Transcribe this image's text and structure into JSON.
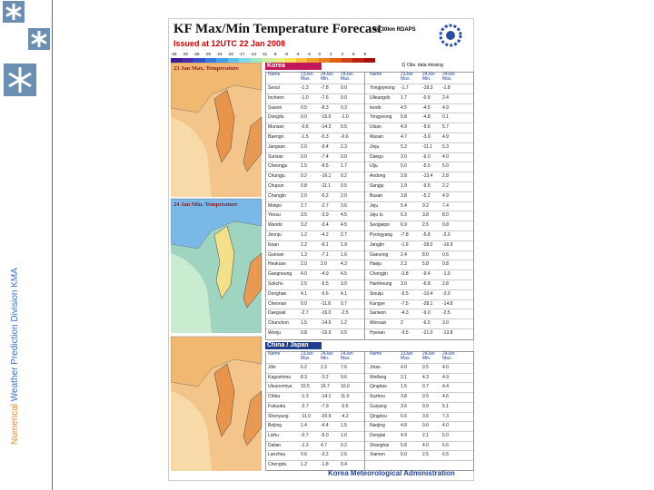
{
  "sidebar": {
    "text_a": "Numerical ",
    "text_b": "Weather Prediction Division  KMA"
  },
  "header": {
    "title": "KF Max/Min Temperature Forecast",
    "subtitle": "by 30km RDAPS",
    "issued": "Issued at 12UTC 22 Jan 2008"
  },
  "scale": [
    "-35",
    "-32",
    "-29",
    "-26",
    "-23",
    "-20",
    "-17",
    "-14",
    "-11",
    "-8",
    "-6",
    "-4",
    "-2",
    "0",
    "2",
    "4",
    "6",
    "8"
  ],
  "maps": [
    "23 Jan Max. Temperature",
    "24 Jan Min. Temperature"
  ],
  "korea": {
    "title": "Korea",
    "note": "1) Obs. data missing",
    "columns": [
      "Name",
      "23Jan Max.",
      "24Jan Min.",
      "24Jan Max.",
      "Name",
      "23Jan Max.",
      "24Jan Min.",
      "24Jan Max."
    ],
    "rows": [
      [
        "Seoul",
        "-1.3",
        "-7.8",
        "0.0",
        "Yongpyeong",
        "-1.7",
        "-18.3",
        "-1.8"
      ],
      [
        "Incheon",
        "-1.0",
        "-7.6",
        "0.0",
        "Ulleungdo",
        "1.7",
        "-0.9",
        "2.4"
      ],
      [
        "Suwon",
        "0.5",
        "-8.3",
        "0.3",
        "Ieodo",
        "4.5",
        "-4.5",
        "4.9"
      ],
      [
        "Dongdu",
        "0.0",
        "-15.0",
        "-1.0",
        "Tongyeong",
        "5.8",
        "-4.8",
        "0.1"
      ],
      [
        "Munsan",
        "-0.6",
        "-14.3",
        "0.5",
        "Ulsan",
        "4.9",
        "-5.6",
        "5.7"
      ],
      [
        "Baengn.",
        "-1.5",
        "-5.3",
        "-0.6",
        "Masan",
        "4.7",
        "-3.9",
        "4.9"
      ],
      [
        "Jangsan",
        "2.0",
        "-9.4",
        "2.3",
        "Jinju",
        "5.2",
        "-11.1",
        "5.3"
      ],
      [
        "Sunsan",
        "0.0",
        "-7.4",
        "0.0",
        "Daegu",
        "3.0",
        "-6.0",
        "4.0"
      ],
      [
        "Cheongju",
        "1.5",
        "-9.5",
        "1.7",
        "Ulju",
        "5.0",
        "-5.5",
        "5.0"
      ],
      [
        "Chungju",
        "0.2",
        "-16.1",
        "0.2",
        "Andong",
        "2.8",
        "-13.4",
        "2.8"
      ],
      [
        "Chupun",
        "0.8",
        "-11.1",
        "0.5",
        "Sangju",
        "1.9",
        "-9.5",
        "2.2"
      ],
      [
        "Changjin",
        "2.0",
        "-5.2",
        "2.0",
        "Busan",
        "3.8",
        "-5.2",
        "4.9"
      ],
      [
        "Mokpo",
        "2.7",
        "-2.7",
        "3.6",
        "Jeju",
        "5.4",
        "9.2",
        "7.4"
      ],
      [
        "Yeosu",
        "3.5",
        "-3.9",
        "4.5",
        "Jeju Is.",
        "6.3",
        "3.8",
        "8.0"
      ],
      [
        "Wando",
        "3.2",
        "-3.4",
        "4.5",
        "Seogwipo",
        "6.9",
        "2.5",
        "9.8"
      ],
      [
        "Jeonju",
        "1.2",
        "-4.2",
        "2.7",
        "Pyongyang",
        "-7.8",
        "-5.8",
        "-2.0"
      ],
      [
        "Iksan",
        "2.2",
        "-9.1",
        "1.9",
        "Jangjin",
        "-1.6",
        "-28.0",
        "-16.9"
      ],
      [
        "Gunsan",
        "1.3",
        "-7.1",
        "1.6",
        "Gaesong",
        "2.4",
        "8.0",
        "0.6"
      ],
      [
        "Heuksan",
        "2.0",
        "2.0",
        "4.3",
        "Haeju",
        "2.3",
        "5.8",
        "0.8"
      ],
      [
        "Gangneung",
        "4.0",
        "-4.9",
        "4.5",
        "Chongjin",
        "-3.8",
        "-9.4",
        "-1.0"
      ],
      [
        "Sokcho",
        "2.5",
        "-5.5",
        "3.0",
        "Hamheung",
        "3.0",
        "-6.8",
        "2.8"
      ],
      [
        "Donghae",
        "4.1",
        "-5.6",
        "4.1",
        "Sinuiju",
        "-5.5",
        "-10.4",
        "-3.0"
      ],
      [
        "Cheonan",
        "0.0",
        "-11.8",
        "0.7",
        "Kangye",
        "-7.5",
        "-28.1",
        "-14.8"
      ],
      [
        "Daegwal",
        "-2.7",
        "-16.0",
        "-2.5",
        "Sariwon",
        "-4.3",
        "-9.0",
        "-2.5"
      ],
      [
        "Chunchon",
        "1.5",
        "-14.5",
        "1.2",
        "Wonsan",
        "2",
        "-6.5",
        "3.0"
      ],
      [
        "Wonju",
        "0.8",
        "-15.9",
        "0.5",
        "Hyesan",
        "-3.5",
        "-21.0",
        "-13.8"
      ]
    ]
  },
  "china_japan": {
    "title": "China / Japan",
    "columns": [
      "Name",
      "23Jan Max.",
      "24Jan Min.",
      "24Jan Max.",
      "Name",
      "23Jan Max.",
      "24Jan Min.",
      "24Jan Max."
    ],
    "rows": [
      [
        "Jilin",
        "6.2",
        "2.3",
        "7.6",
        "Jinan",
        "4.0",
        "0.5",
        "4.0"
      ],
      [
        "Kagoshima",
        "8.3",
        "-3.2",
        "9.6",
        "Weifang",
        "2.1",
        "4.3",
        "4.9"
      ],
      [
        "Utsunomiya",
        "10.5",
        "16.7",
        "10.0",
        "Qingdao",
        "1.5",
        "0.7",
        "4.4"
      ],
      [
        "Chiba",
        "-1.3",
        "-14.1",
        "11.0",
        "Suzhou",
        "3.8",
        "0.5",
        "4.6"
      ],
      [
        "Fukuoka",
        "-2.7",
        "-7.9",
        "-0.6",
        "Guiyang",
        "3.6",
        "0.9",
        "5.1"
      ],
      [
        "Shenyang",
        "-11.0",
        "-20.9",
        "-4.2",
        "Qingdou",
        "6.6",
        "3.6",
        "7.3"
      ],
      [
        "Beijing",
        "1.4",
        "-4.4",
        "1.5",
        "Nanjing",
        "4.8",
        "0.6",
        "4.0"
      ],
      [
        "Lishu",
        "-0.7",
        "-5.0",
        "1.0",
        "Dongtai",
        "4.9",
        "2.1",
        "5.0"
      ],
      [
        "Dalian",
        "-1.3",
        "4.7",
        "0.2",
        "Shanghai",
        "5.8",
        "4.0",
        "6.6"
      ],
      [
        "Lanzhou",
        "0.6",
        "-3.2",
        "2.6",
        "Xiamen",
        "6.0",
        "2.5",
        "6.5"
      ],
      [
        "Chengdu",
        "1.2",
        "-1.8",
        "0.4",
        "",
        "",
        "",
        ""
      ]
    ]
  },
  "footer": "Korea Meteorological Administration"
}
